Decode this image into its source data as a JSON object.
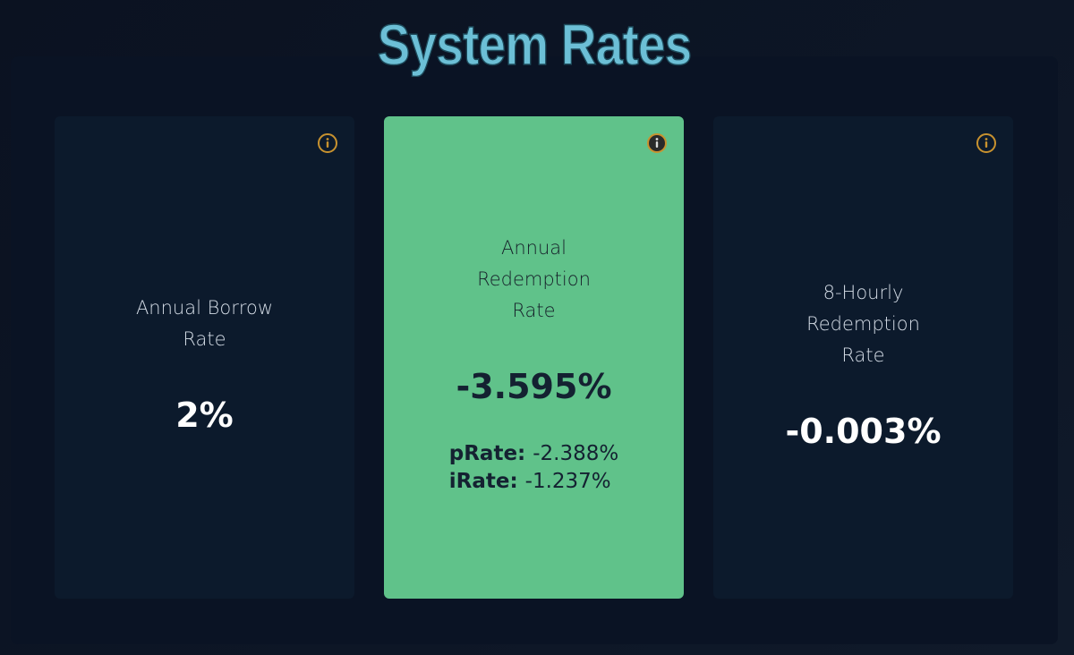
{
  "title": "System Rates",
  "cards": [
    {
      "label": "Annual Borrow Rate",
      "value": "2%"
    },
    {
      "label": "Annual Redemption Rate",
      "value": "-3.595%",
      "details": [
        {
          "label": "pRate:",
          "value": "-2.388%"
        },
        {
          "label": "iRate:",
          "value": "-1.237%"
        }
      ]
    },
    {
      "label": "8-Hourly Redemption Rate",
      "value": "-0.003%"
    }
  ]
}
